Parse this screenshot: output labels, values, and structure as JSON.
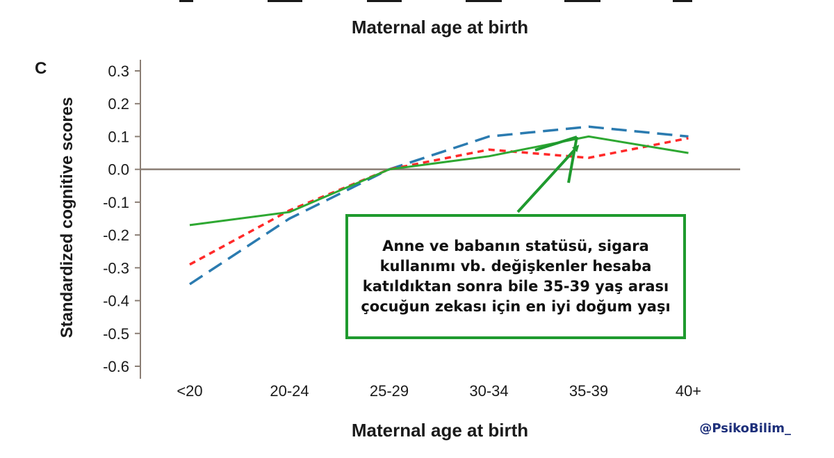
{
  "top_xlabel": "Maternal age at birth",
  "chart_data": {
    "type": "line",
    "panel_label": "C",
    "title": "",
    "xlabel": "Maternal age at birth",
    "ylabel": "Standardized cognitive scores",
    "categories": [
      "<20",
      "20-24",
      "25-29",
      "30-34",
      "35-39",
      "40+"
    ],
    "yticks": [
      "0.3",
      "0.2",
      "0.1",
      "0.0",
      "-0.1",
      "-0.2",
      "-0.3",
      "-0.4",
      "-0.5",
      "-0.6"
    ],
    "ylim": [
      -0.6,
      0.3
    ],
    "reference_line": 0.0,
    "grid": false,
    "legend": "none",
    "series": [
      {
        "style": "long-dash",
        "color": "#2b7bb0",
        "values": [
          -0.35,
          -0.15,
          0.0,
          0.1,
          0.13,
          0.1
        ]
      },
      {
        "style": "short-dash",
        "color": "#ff2a2a",
        "values": [
          -0.29,
          -0.125,
          0.0,
          0.06,
          0.035,
          0.095
        ]
      },
      {
        "style": "solid",
        "color": "#2ea832",
        "values": [
          -0.17,
          -0.13,
          0.0,
          0.04,
          0.1,
          0.05
        ]
      }
    ],
    "annotation": {
      "text": "Anne ve babanın statüsü, sigara kullanımı vb. değişkenler hesaba katıldıktan sonra bile 35-39 yaş arası çocuğun zekası için en iyi doğum yaşı",
      "points_to": "35-39",
      "color": "#1f9a2e"
    }
  },
  "credit": "@PsikoBilim_"
}
